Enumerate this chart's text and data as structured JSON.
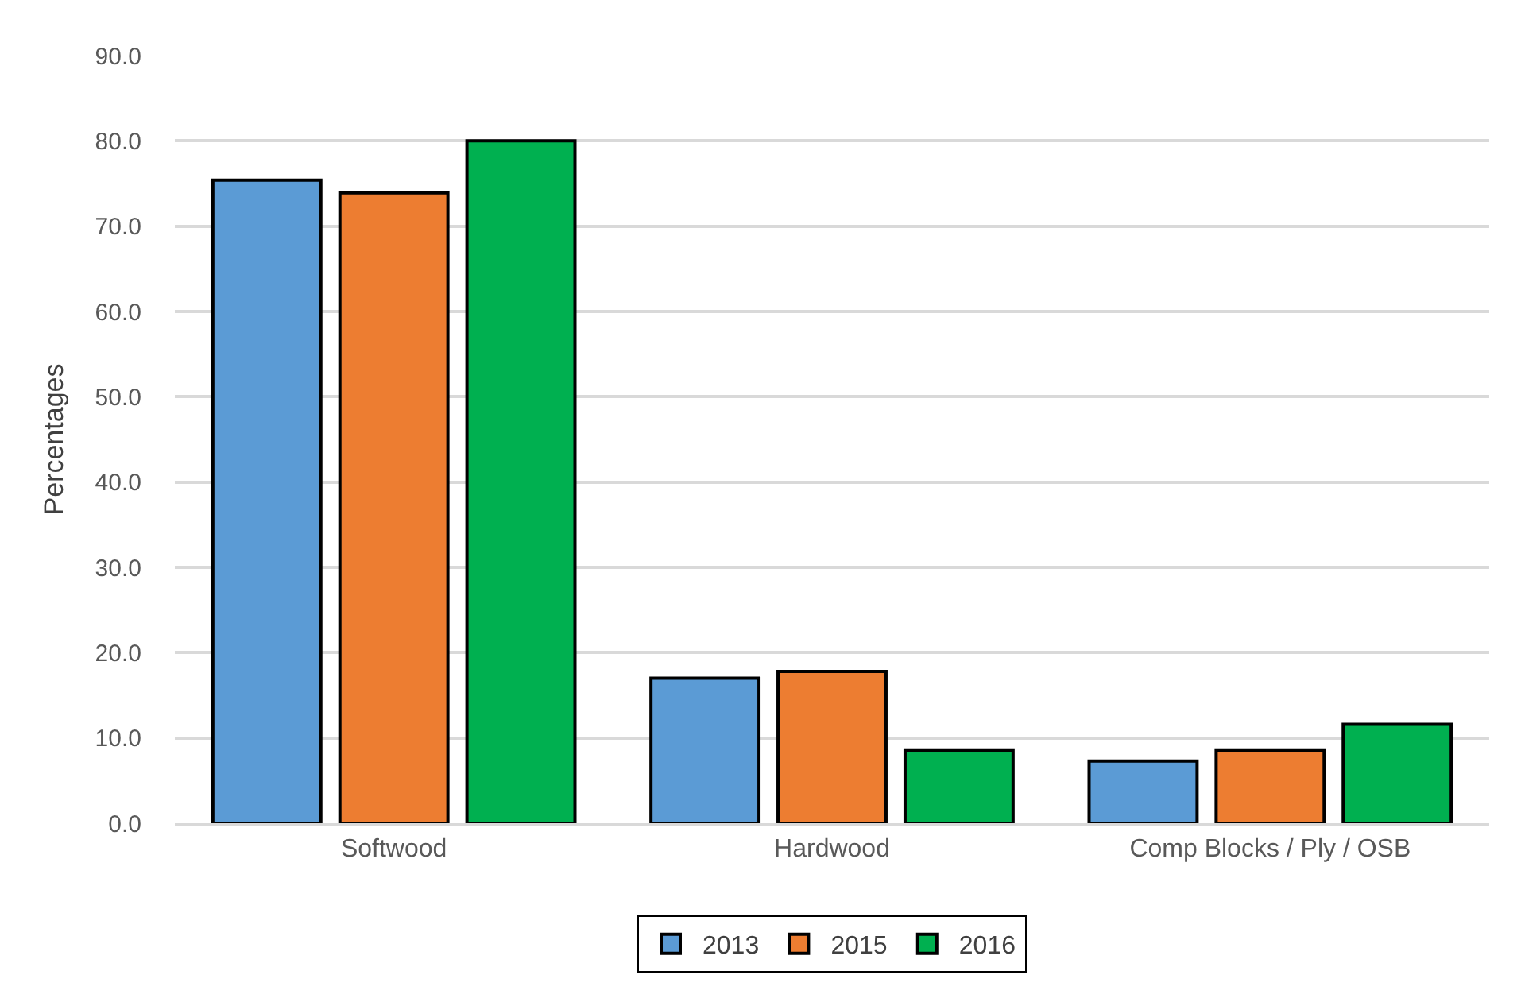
{
  "chart_data": {
    "type": "bar",
    "ylabel": "Percentages",
    "categories": [
      "Softwood",
      "Hardwood",
      "Comp Blocks / Ply / OSB"
    ],
    "series": [
      {
        "name": "2013",
        "color": "#5b9bd5",
        "values": [
          75.4,
          17.0,
          7.3
        ]
      },
      {
        "name": "2015",
        "color": "#ed7d31",
        "values": [
          73.9,
          17.8,
          8.5
        ]
      },
      {
        "name": "2016",
        "color": "#00b050",
        "values": [
          80.0,
          8.5,
          11.6
        ]
      }
    ],
    "ylim": [
      0,
      90
    ],
    "yticks": [
      {
        "value": 0,
        "label": "0.0"
      },
      {
        "value": 10,
        "label": "10.0"
      },
      {
        "value": 20,
        "label": "20.0"
      },
      {
        "value": 30,
        "label": "30.0"
      },
      {
        "value": 40,
        "label": "40.0"
      },
      {
        "value": 50,
        "label": "50.0"
      },
      {
        "value": 60,
        "label": "60.0"
      },
      {
        "value": 70,
        "label": "70.0"
      },
      {
        "value": 80,
        "label": "80.0"
      },
      {
        "value": 90,
        "label": "90.0"
      }
    ],
    "grid": "y",
    "legend": "bottom"
  }
}
